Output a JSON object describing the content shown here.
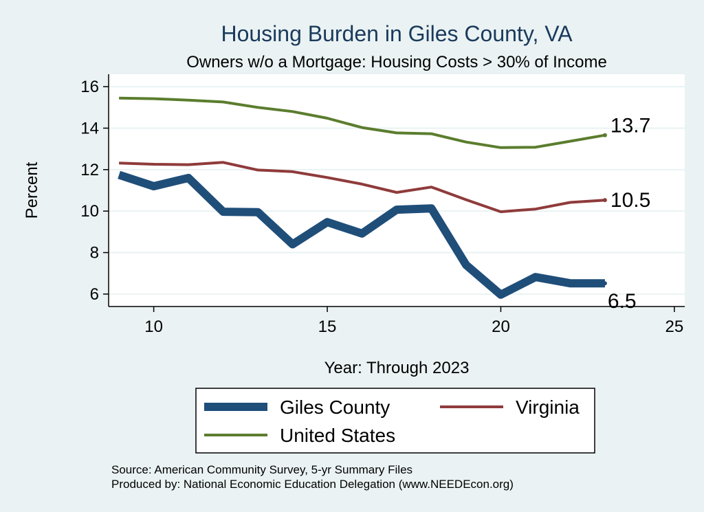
{
  "chart_data": {
    "type": "line",
    "title": "Housing Burden in Giles County, VA",
    "subtitle": "Owners w/o a Mortgage: Housing Costs > 30% of Income",
    "xlabel": "Year: Through 2023",
    "ylabel": "Percent",
    "xlim": [
      8.7,
      25.3
    ],
    "ylim": [
      5.4,
      16.6
    ],
    "xticks": [
      10,
      15,
      20,
      25
    ],
    "yticks": [
      6,
      8,
      10,
      12,
      14,
      16
    ],
    "grid": true,
    "legend_position": "bottom",
    "x": [
      9,
      10,
      11,
      12,
      13,
      14,
      15,
      16,
      17,
      18,
      19,
      20,
      21,
      22,
      23
    ],
    "series": [
      {
        "name": "Giles County",
        "color": "#1f4e79",
        "values": [
          11.75,
          11.2,
          11.6,
          9.97,
          9.95,
          8.4,
          9.47,
          8.92,
          10.07,
          10.13,
          7.4,
          5.97,
          6.82,
          6.52,
          6.52
        ],
        "end_label": "6.5"
      },
      {
        "name": "Virginia",
        "color": "#8f3b3b",
        "values": [
          12.32,
          12.26,
          12.24,
          12.35,
          11.98,
          11.9,
          11.62,
          11.3,
          10.9,
          11.16,
          10.55,
          9.97,
          10.1,
          10.42,
          10.53
        ],
        "end_label": "10.5"
      },
      {
        "name": "United States",
        "color": "#5b7d2e",
        "values": [
          15.45,
          15.42,
          15.35,
          15.26,
          15.0,
          14.8,
          14.48,
          14.03,
          13.77,
          13.73,
          13.33,
          13.06,
          13.08,
          13.37,
          13.66
        ],
        "end_label": "13.7"
      }
    ],
    "source": "Source: American Community Survey, 5-yr Summary Files",
    "producer": "Produced by: National Economic Education Delegation (www.NEEDEcon.org)"
  }
}
